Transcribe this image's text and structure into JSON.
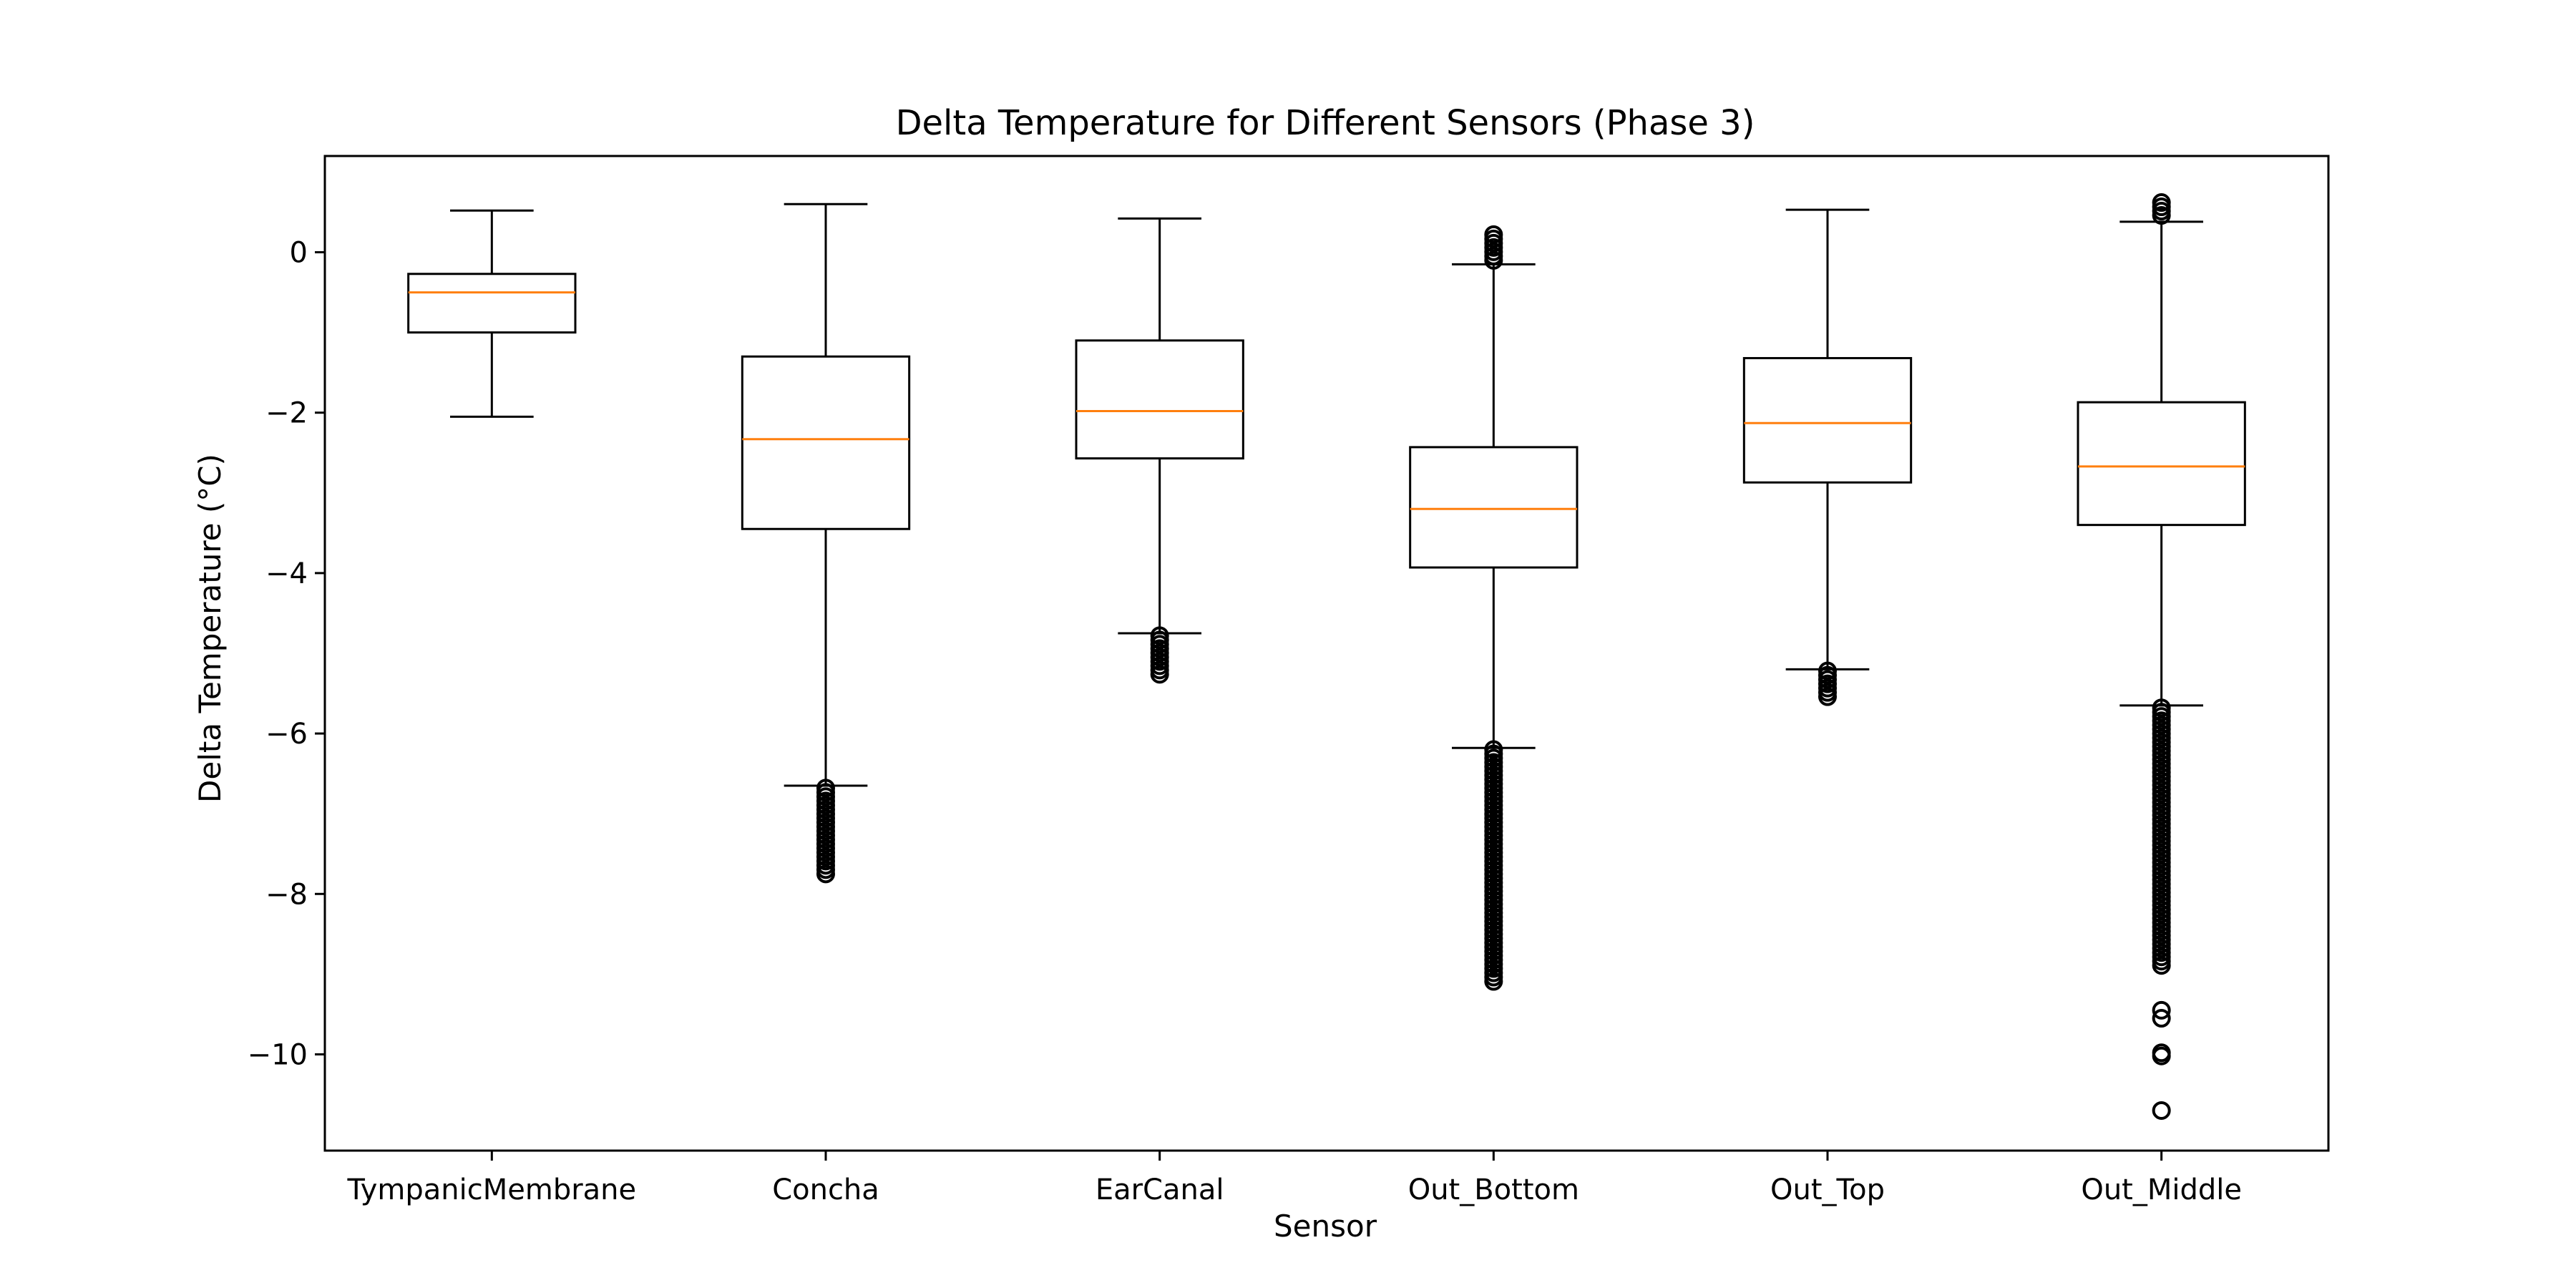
{
  "chart_data": {
    "type": "box",
    "title": "Delta Temperature for Different Sensors (Phase 3)",
    "xlabel": "Sensor",
    "ylabel": "Delta Temperature (°C)",
    "ylim": [
      -11.2,
      1.2
    ],
    "yticks": [
      0,
      -2,
      -4,
      -6,
      -8,
      -10
    ],
    "ytick_labels": [
      "0",
      "−2",
      "−4",
      "−6",
      "−8",
      "−10"
    ],
    "grid": false,
    "colors": {
      "box": "#000000",
      "median": "#ff7f0e",
      "background": "#ffffff"
    },
    "boxes": [
      {
        "name": "TympanicMembrane",
        "whisker_low": -2.05,
        "q1": -1.0,
        "median": -0.5,
        "q3": -0.27,
        "whisker_high": 0.52,
        "outlier_ranges": [],
        "outliers": []
      },
      {
        "name": "Concha",
        "whisker_low": -6.65,
        "q1": -3.45,
        "median": -2.33,
        "q3": -1.3,
        "whisker_high": 0.6,
        "outlier_ranges": [
          [
            -7.8,
            -6.68
          ]
        ],
        "outliers": []
      },
      {
        "name": "EarCanal",
        "whisker_low": -4.75,
        "q1": -2.57,
        "median": -1.98,
        "q3": -1.1,
        "whisker_high": 0.42,
        "outlier_ranges": [
          [
            -5.3,
            -4.78
          ]
        ],
        "outliers": []
      },
      {
        "name": "Out_Bottom",
        "whisker_low": -6.18,
        "q1": -3.93,
        "median": -3.2,
        "q3": -2.43,
        "whisker_high": -0.15,
        "outlier_ranges": [
          [
            -9.1,
            -6.2
          ],
          [
            -0.12,
            0.22
          ]
        ],
        "outliers": []
      },
      {
        "name": "Out_Top",
        "whisker_low": -5.2,
        "q1": -2.87,
        "median": -2.13,
        "q3": -1.32,
        "whisker_high": 0.53,
        "outlier_ranges": [
          [
            -5.55,
            -5.22
          ]
        ],
        "outliers": []
      },
      {
        "name": "Out_Middle",
        "whisker_low": -5.65,
        "q1": -3.4,
        "median": -2.67,
        "q3": -1.87,
        "whisker_high": 0.38,
        "outlier_ranges": [
          [
            -8.9,
            -5.68
          ],
          [
            0.42,
            0.62
          ]
        ],
        "outliers": [
          -9.45,
          -9.55,
          -9.98,
          -10.02,
          -10.7
        ]
      }
    ]
  }
}
